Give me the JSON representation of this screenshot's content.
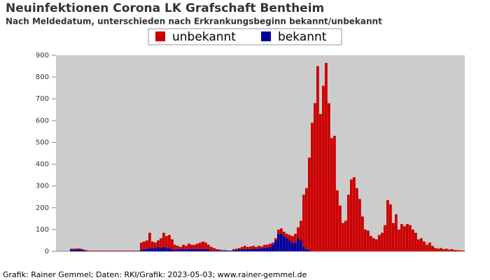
{
  "chart_data": {
    "type": "bar",
    "stacked": true,
    "title": "Neuinfektionen Corona LK Grafschaft Bentheim",
    "subtitle": "Nach Meldedatum, unterschieden nach Erkrankungsbeginn bekannt/unbekannt",
    "footer": "Grafik: Rainer Gemmel; Daten: RKI/Grafik: 2023-05-03; www.rainer-gemmel.de",
    "ylim": [
      0,
      900
    ],
    "yticks": [
      0,
      100,
      200,
      300,
      400,
      500,
      600,
      700,
      800,
      900
    ],
    "grid": false,
    "series": [
      {
        "name": "unbekannt",
        "color": "#cc0000",
        "values": [
          0,
          0,
          0,
          0,
          0,
          4,
          4,
          5,
          5,
          4,
          2,
          2,
          2,
          2,
          2,
          2,
          2,
          2,
          2,
          2,
          2,
          2,
          2,
          2,
          2,
          2,
          2,
          2,
          2,
          2,
          35,
          35,
          40,
          70,
          30,
          25,
          30,
          45,
          65,
          55,
          60,
          45,
          25,
          15,
          10,
          20,
          15,
          25,
          20,
          20,
          25,
          30,
          35,
          30,
          20,
          17,
          12,
          7,
          5,
          2,
          2,
          0,
          0,
          5,
          7,
          7,
          12,
          15,
          10,
          12,
          13,
          8,
          13,
          7,
          15,
          15,
          15,
          10,
          10,
          20,
          25,
          20,
          20,
          25,
          30,
          40,
          50,
          90,
          240,
          280,
          425,
          590,
          680,
          850,
          630,
          760,
          865,
          680,
          520,
          530,
          280,
          210,
          130,
          140,
          260,
          330,
          340,
          290,
          240,
          160,
          100,
          95,
          70,
          60,
          55,
          75,
          85,
          120,
          235,
          215,
          130,
          170,
          100,
          125,
          115,
          125,
          120,
          100,
          85,
          55,
          60,
          45,
          30,
          40,
          25,
          15,
          12,
          15,
          10,
          12,
          8,
          10,
          6,
          5,
          4,
          3
        ]
      },
      {
        "name": "bekannt",
        "color": "#000099",
        "values": [
          0,
          0,
          0,
          0,
          0,
          8,
          8,
          8,
          8,
          6,
          4,
          1,
          1,
          1,
          1,
          1,
          1,
          1,
          1,
          1,
          1,
          1,
          1,
          1,
          1,
          1,
          1,
          1,
          1,
          1,
          5,
          10,
          10,
          15,
          15,
          15,
          20,
          15,
          20,
          15,
          15,
          10,
          5,
          10,
          10,
          10,
          10,
          10,
          10,
          10,
          10,
          10,
          10,
          10,
          10,
          3,
          3,
          3,
          3,
          3,
          3,
          3,
          3,
          5,
          5,
          8,
          8,
          10,
          10,
          10,
          12,
          12,
          12,
          15,
          15,
          15,
          20,
          30,
          50,
          80,
          80,
          70,
          60,
          50,
          40,
          40,
          60,
          50,
          20,
          10,
          5,
          0,
          0,
          0,
          0,
          0,
          0,
          0,
          0,
          0,
          0,
          0,
          0,
          0,
          0,
          0,
          0,
          0,
          0,
          0,
          0,
          0,
          0,
          0,
          0,
          0,
          0,
          0,
          0,
          0,
          0,
          0,
          0,
          0,
          0,
          0,
          0,
          0,
          0,
          0,
          0,
          0,
          0,
          0,
          0,
          0,
          0,
          0,
          0,
          0,
          0,
          0,
          0,
          0,
          0,
          0,
          0
        ]
      }
    ]
  }
}
